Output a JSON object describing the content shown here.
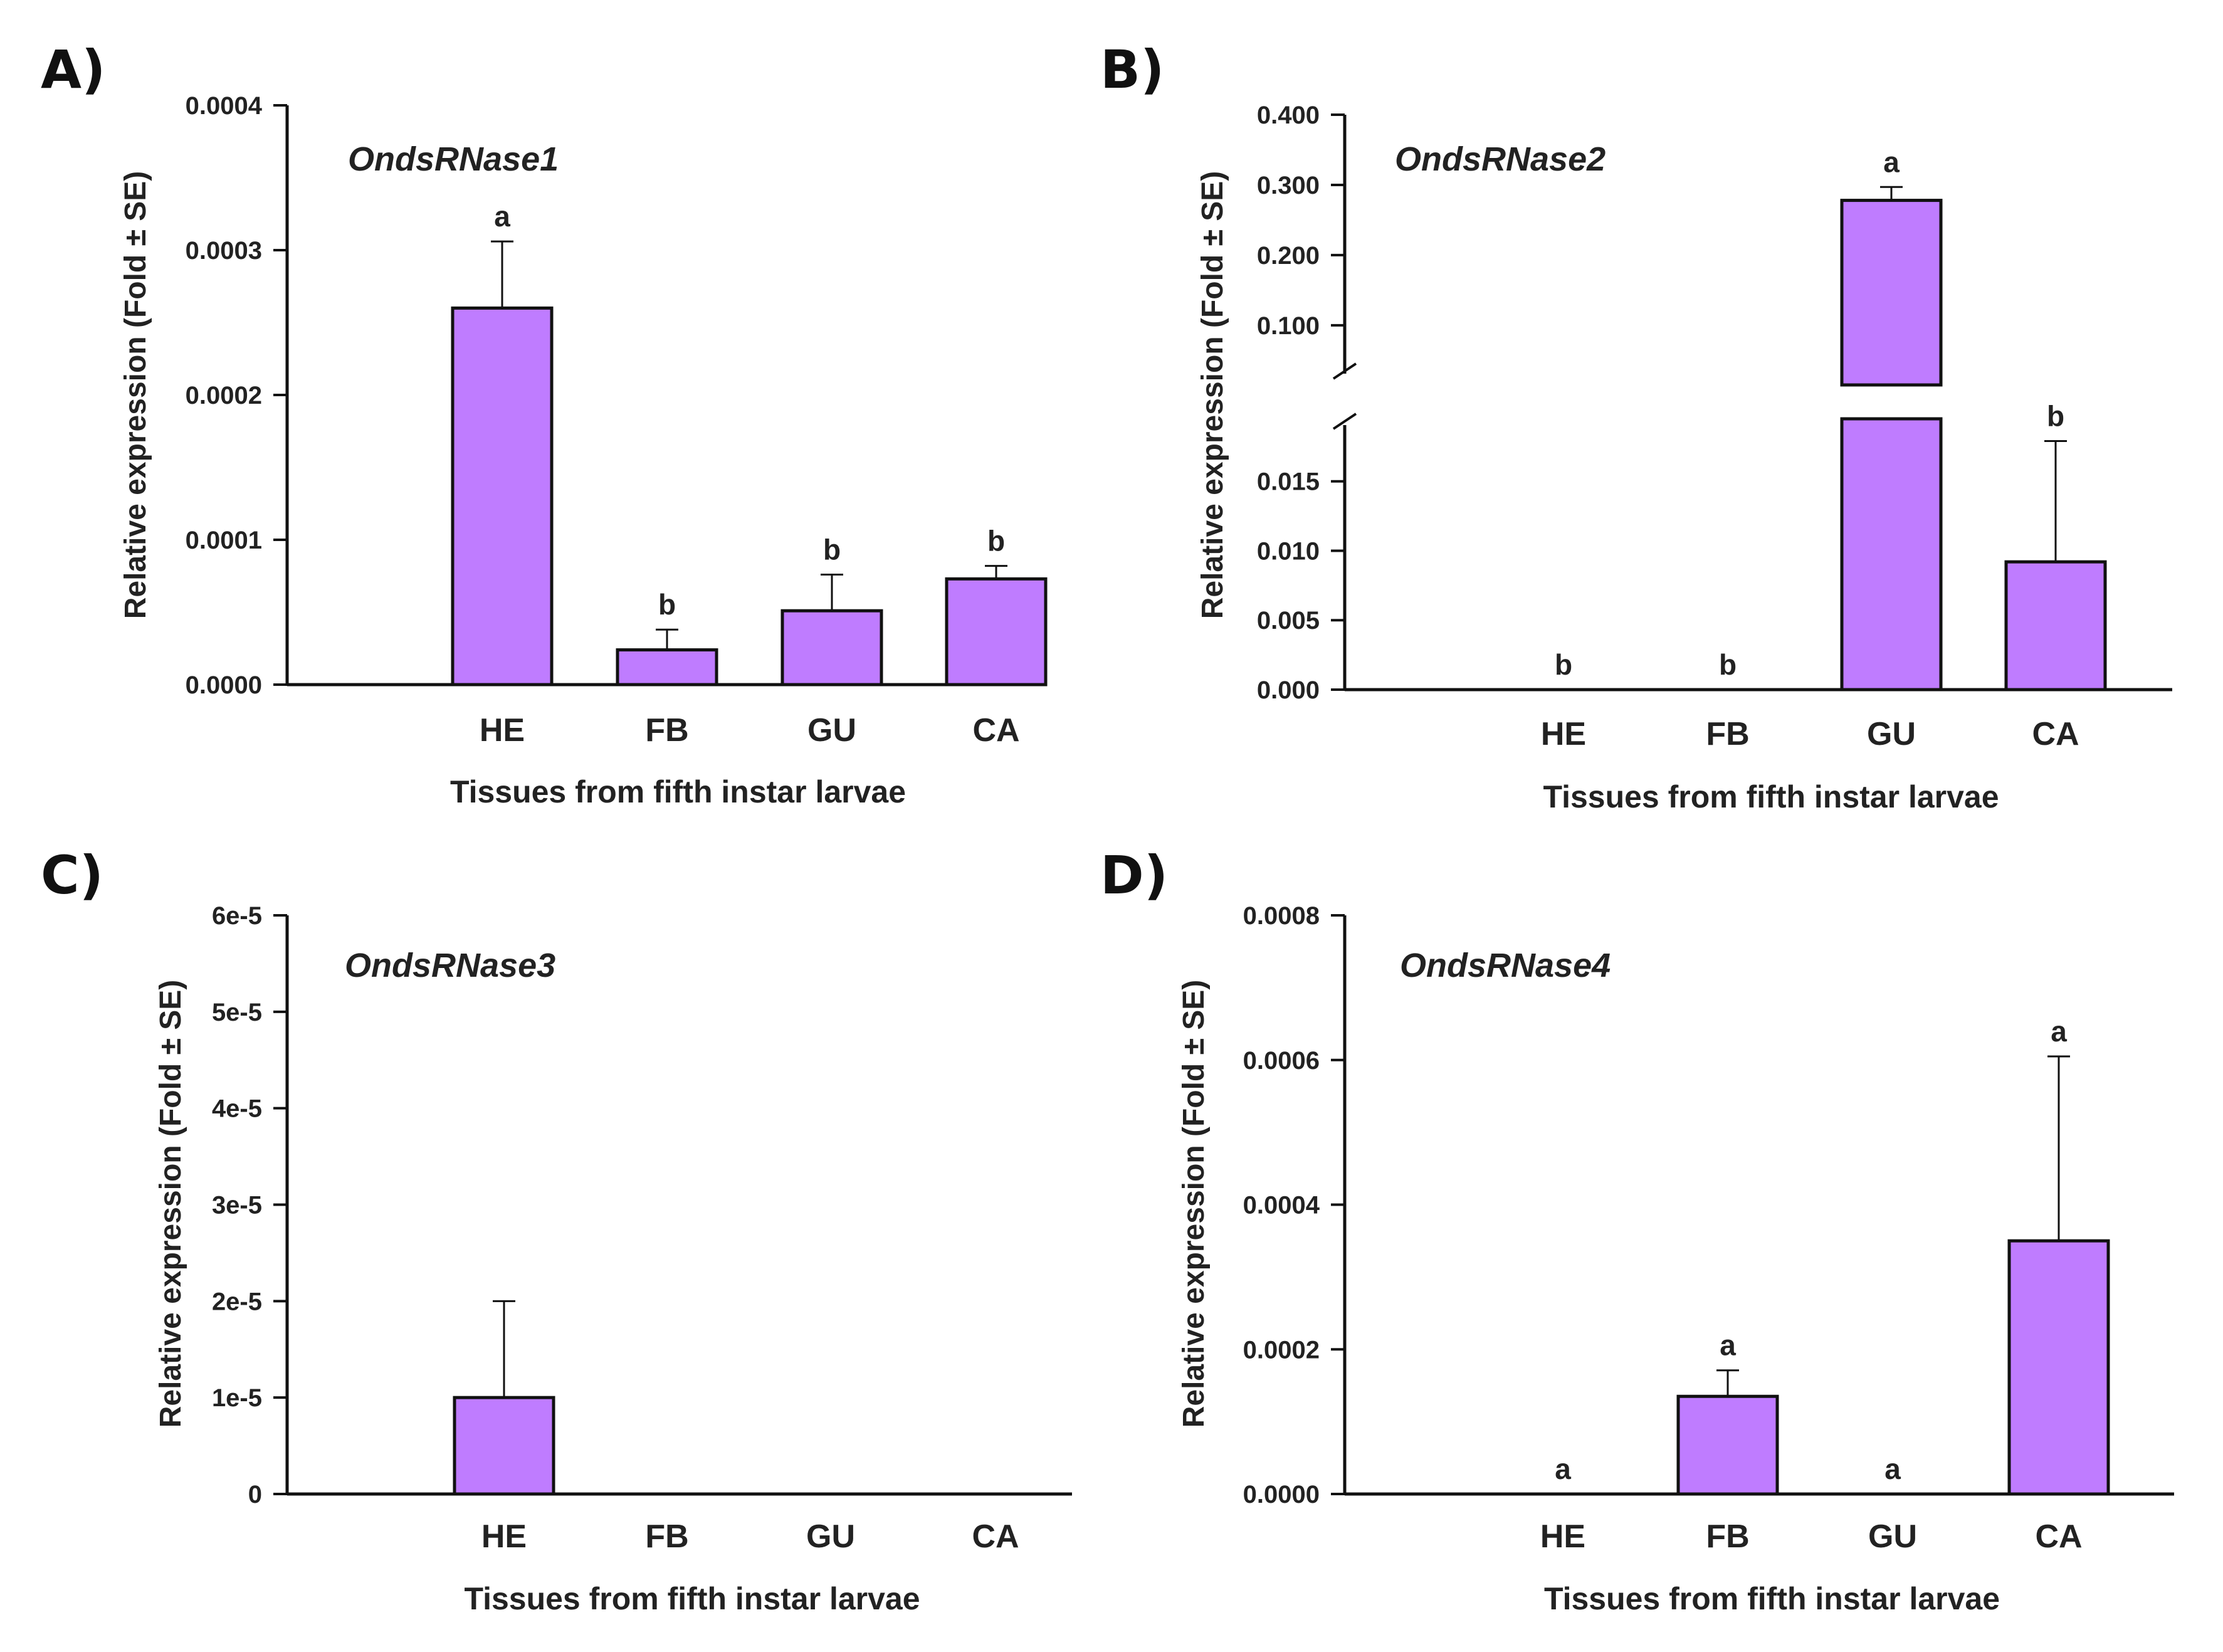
{
  "chart_data": [
    {
      "panel": "A)",
      "type": "bar",
      "title": "OndsRNase1",
      "xlabel": "Tissues from fifth instar larvae",
      "ylabel": "Relative expression (Fold ± SE)",
      "categories": [
        "HE",
        "FB",
        "GU",
        "CA"
      ],
      "values": [
        0.00026,
        2.4e-05,
        5.1e-05,
        7.3e-05
      ],
      "errors": [
        4.6e-05,
        1.4e-05,
        2.5e-05,
        9e-06
      ],
      "letters": [
        "a",
        "b",
        "b",
        "b"
      ],
      "ylim": [
        0,
        0.0004
      ],
      "yticks": [
        0,
        0.0001,
        0.0002,
        0.0003,
        0.0004
      ],
      "ytick_labels": [
        "0.0000",
        "0.0001",
        "0.0002",
        "0.0003",
        "0.0004"
      ],
      "bar_color": "#bf7cff"
    },
    {
      "panel": "B)",
      "type": "bar",
      "title": "OndsRNase2",
      "xlabel": "Tissues from fifth instar larvae",
      "ylabel": "Relative expression (Fold ± SE)",
      "categories": [
        "HE",
        "FB",
        "GU",
        "CA"
      ],
      "values": [
        0,
        0,
        0.278,
        0.0092
      ],
      "errors": [
        0,
        0,
        0.019,
        0.0087
      ],
      "letters": [
        "b",
        "b",
        "a",
        "b"
      ],
      "broken_axis": {
        "lower": [
          0,
          0.0195
        ],
        "upper": [
          0.015,
          0.4
        ]
      },
      "lower_yticks": [
        0,
        0.005,
        0.01,
        0.015
      ],
      "lower_ytick_labels": [
        "0.000",
        "0.005",
        "0.010",
        "0.015"
      ],
      "upper_yticks": [
        0.1,
        0.2,
        0.3,
        0.4
      ],
      "upper_ytick_labels": [
        "0.100",
        "0.200",
        "0.300",
        "0.400"
      ],
      "bar_color": "#bf7cff"
    },
    {
      "panel": "C)",
      "type": "bar",
      "title": "OndsRNase3",
      "xlabel": "Tissues from fifth instar larvae",
      "ylabel": "Relative expression (Fold ± SE)",
      "categories": [
        "HE",
        "FB",
        "GU",
        "CA"
      ],
      "values": [
        1e-05,
        0,
        0,
        0
      ],
      "errors": [
        1e-05,
        0,
        0,
        0
      ],
      "letters": [
        "",
        "",
        "",
        ""
      ],
      "ylim": [
        0,
        6e-05
      ],
      "yticks": [
        0,
        1e-05,
        2e-05,
        3e-05,
        4e-05,
        5e-05,
        6e-05
      ],
      "ytick_labels": [
        "0",
        "1e-5",
        "2e-5",
        "3e-5",
        "4e-5",
        "5e-5",
        "6e-5"
      ],
      "bar_color": "#bf7cff"
    },
    {
      "panel": "D)",
      "type": "bar",
      "title": "OndsRNase4",
      "xlabel": "Tissues from fifth instar larvae",
      "ylabel": "Relative expression (Fold ± SE)",
      "categories": [
        "HE",
        "FB",
        "GU",
        "CA"
      ],
      "values": [
        0,
        0.000135,
        0,
        0.00035
      ],
      "errors": [
        0,
        3.6e-05,
        0,
        0.000255
      ],
      "letters": [
        "a",
        "a",
        "a",
        "a"
      ],
      "ylim": [
        0,
        0.0008
      ],
      "yticks": [
        0,
        0.0002,
        0.0004,
        0.0006,
        0.0008
      ],
      "ytick_labels": [
        "0.0000",
        "0.0002",
        "0.0004",
        "0.0006",
        "0.0008"
      ],
      "bar_color": "#bf7cff"
    }
  ]
}
